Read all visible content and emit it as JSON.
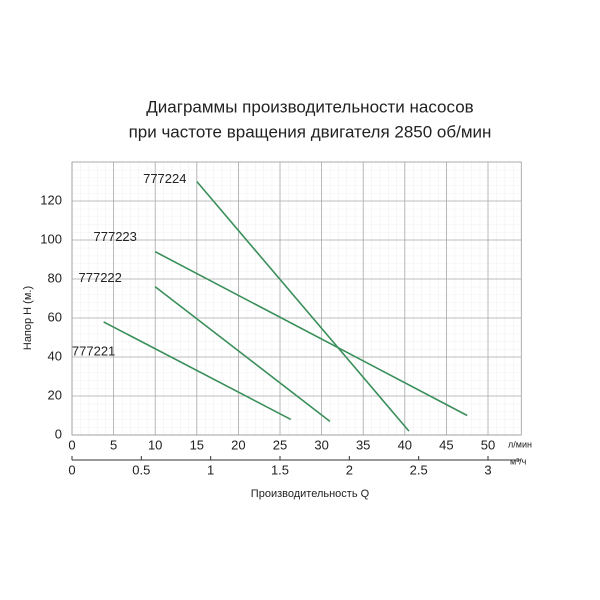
{
  "chart_data": {
    "type": "line",
    "title": "Диаграммы производительности насосов",
    "subtitle": "при частоте вращения двигателя 2850 об/мин",
    "x_label": "Производительность  Q",
    "y_label": "Напор H (м.)",
    "x_unit": "л/мин",
    "x2_unit": "м³/ч",
    "xlim": [
      0,
      54
    ],
    "xticks": [
      0,
      5,
      10,
      15,
      20,
      25,
      30,
      35,
      40,
      45,
      50
    ],
    "x2lim": [
      0,
      3.24
    ],
    "x2ticks": [
      0,
      0.5,
      1,
      1.5,
      2,
      2.5,
      3
    ],
    "ylim": [
      0,
      140
    ],
    "yticks": [
      0,
      20,
      40,
      60,
      80,
      100,
      120
    ],
    "grid": true,
    "series": [
      {
        "name": "777224",
        "color": "#3a8f5a",
        "x": [
          15,
          40.5
        ],
        "values": [
          130,
          2
        ]
      },
      {
        "name": "777223",
        "color": "#3a8f5a",
        "x": [
          10,
          47.5
        ],
        "values": [
          94,
          10
        ]
      },
      {
        "name": "777222",
        "color": "#3a8f5a",
        "x": [
          10,
          31
        ],
        "values": [
          76,
          7
        ]
      },
      {
        "name": "777221",
        "color": "#3a8f5a",
        "x": [
          3.8,
          26.3
        ],
        "values": [
          58,
          8
        ]
      }
    ]
  }
}
